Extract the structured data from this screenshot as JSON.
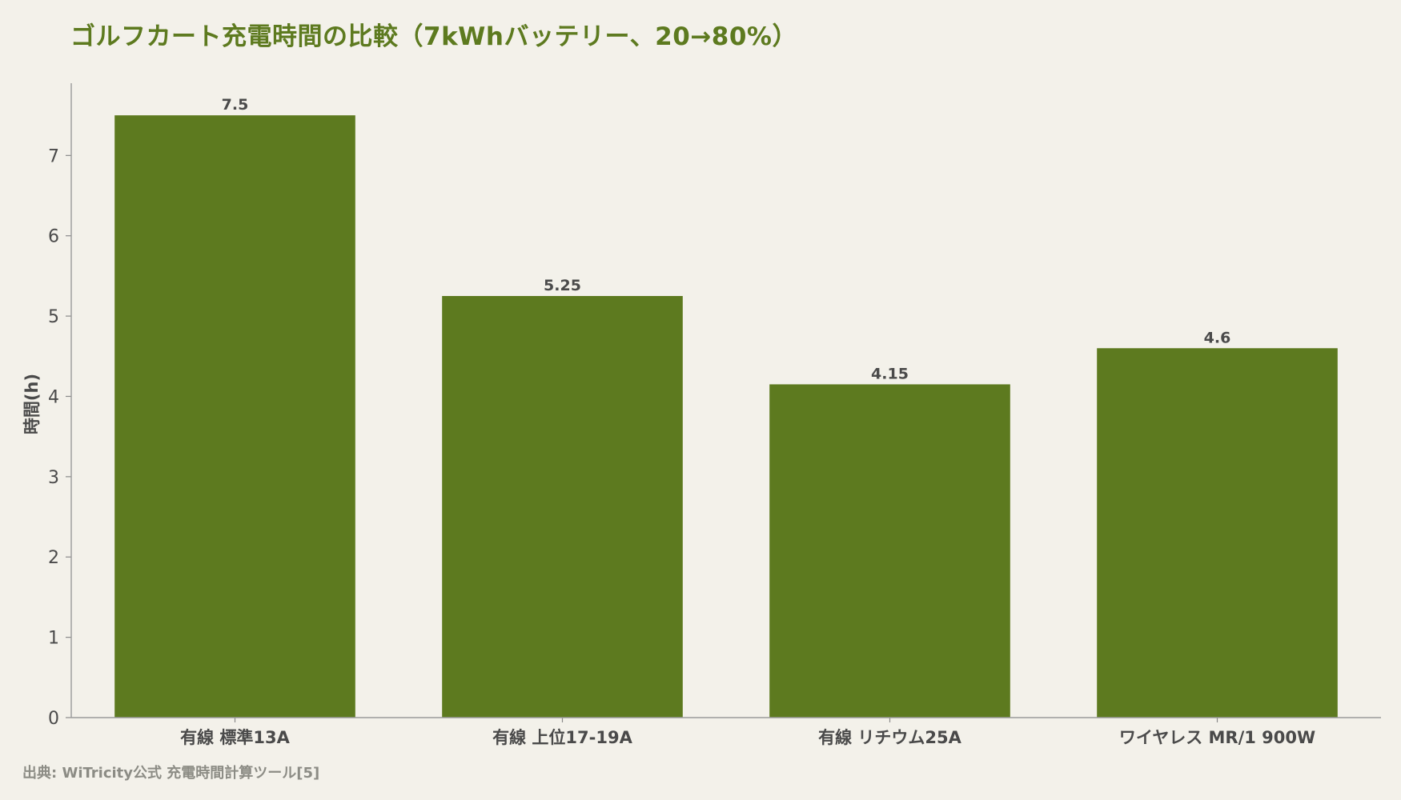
{
  "chart_data": {
    "type": "bar",
    "title": "ゴルフカート充電時間の比較（7kWhバッテリー、20→80%）",
    "xlabel": "",
    "ylabel": "時間(h)",
    "categories": [
      "有線 標準13A",
      "有線 上位17-19A",
      "有線 リチウム25A",
      "ワイヤレス MR/1 900W"
    ],
    "values": [
      7.5,
      5.25,
      4.15,
      4.6
    ],
    "data_labels": [
      "7.5",
      "5.25",
      "4.15",
      "4.6"
    ],
    "yticks": [
      0,
      1,
      2,
      3,
      4,
      5,
      6,
      7
    ],
    "ylim": [
      0,
      7.9
    ],
    "grid": false,
    "legend": "none",
    "bar_color": "#5d7a1f",
    "source": "出典: WiTricity公式 充電時間計算ツール[5]"
  }
}
